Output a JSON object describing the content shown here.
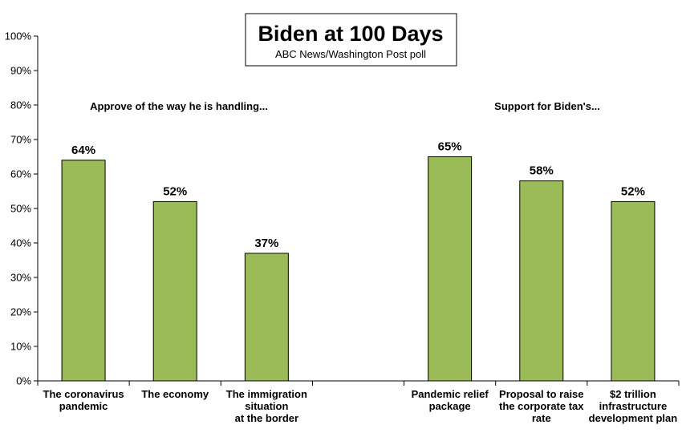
{
  "chart_data": {
    "type": "bar",
    "title": "Biden at 100 Days",
    "subtitle": "ABC News/Washington  Post poll",
    "ylim": [
      0,
      100
    ],
    "y_ticks": [
      "0%",
      "10%",
      "20%",
      "30%",
      "40%",
      "50%",
      "60%",
      "70%",
      "80%",
      "90%",
      "100%"
    ],
    "grid": false,
    "bar_color": "#9bbb59",
    "groups": [
      {
        "label": "Approve of the way he is handling...",
        "categories": [
          {
            "label_lines": [
              "The coronavirus",
              "pandemic"
            ],
            "value": 64,
            "value_label": "64%"
          },
          {
            "label_lines": [
              "The economy"
            ],
            "value": 52,
            "value_label": "52%"
          },
          {
            "label_lines": [
              "The immigration",
              "situation",
              "at the border"
            ],
            "value": 37,
            "value_label": "37%"
          }
        ]
      },
      {
        "label": "Support for Biden's...",
        "categories": [
          {
            "label_lines": [
              "Pandemic relief",
              "package"
            ],
            "value": 65,
            "value_label": "65%"
          },
          {
            "label_lines": [
              "Proposal to raise",
              "the corporate tax",
              "rate"
            ],
            "value": 58,
            "value_label": "58%"
          },
          {
            "label_lines": [
              "$2 trillion",
              "infrastructure",
              "development plan"
            ],
            "value": 52,
            "value_label": "52%"
          }
        ]
      }
    ]
  }
}
